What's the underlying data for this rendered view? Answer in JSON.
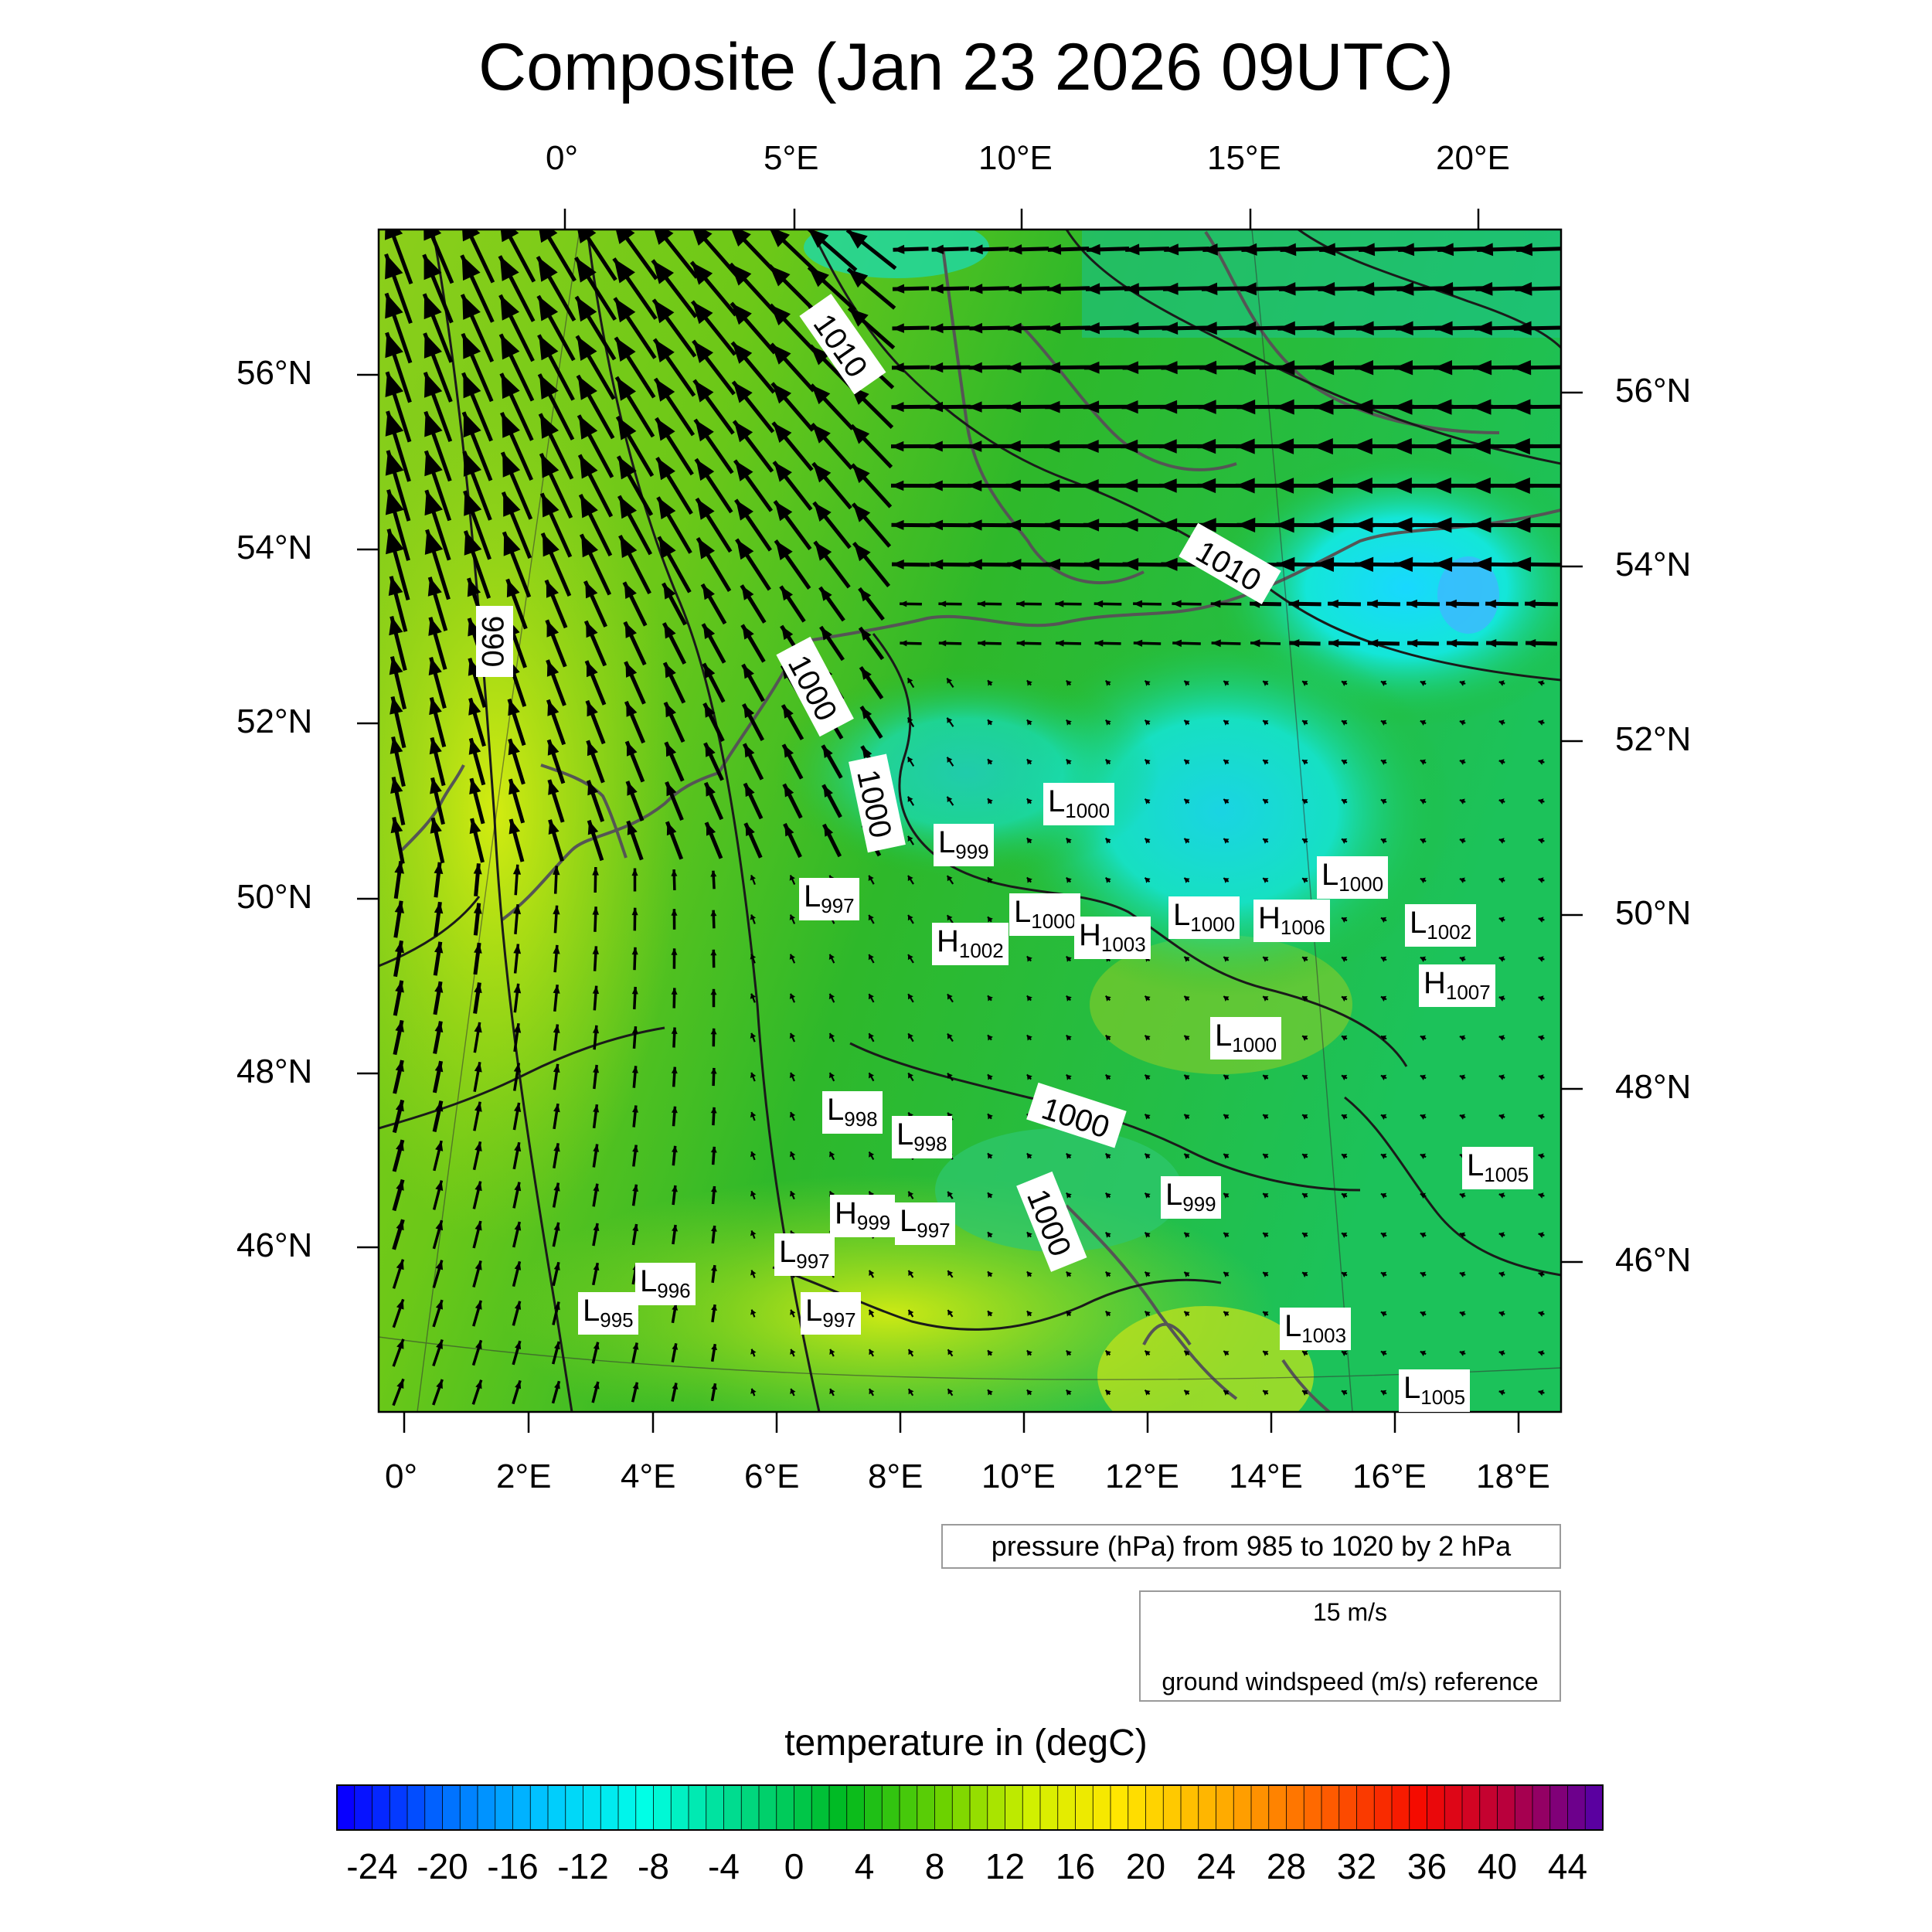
{
  "title": "Composite (Jan 23 2026 09UTC)",
  "colors": {
    "land_mid": "#22bb22",
    "land_warm": "#a8d81a",
    "cold": "#14e0e0",
    "coast": "#555555",
    "isobar": "#1a1a1a",
    "arrow": "#000000"
  },
  "axes": {
    "top_lon_labels": [
      "0°",
      "5°E",
      "10°E",
      "15°E",
      "20°E"
    ],
    "bottom_lon_labels": [
      "0°",
      "2°E",
      "4°E",
      "6°E",
      "8°E",
      "10°E",
      "12°E",
      "14°E",
      "16°E",
      "18°E"
    ],
    "left_lat_labels": [
      "56°N",
      "54°N",
      "52°N",
      "50°N",
      "48°N",
      "46°N"
    ],
    "right_lat_labels": [
      "56°N",
      "54°N",
      "52°N",
      "50°N",
      "48°N",
      "46°N"
    ]
  },
  "pressure_legend": "pressure (hPa) from 985 to 1020 by 2 hPa",
  "wind_reference": {
    "speed_label": "15 m/s",
    "description": "ground windspeed (m/s) reference"
  },
  "colorbar": {
    "title": "temperature in (degC)",
    "min": -26,
    "max": 46,
    "step": 1,
    "labels": [
      "-24",
      "-20",
      "-16",
      "-12",
      "-8",
      "-4",
      "0",
      "4",
      "8",
      "12",
      "16",
      "20",
      "24",
      "28",
      "32",
      "36",
      "40",
      "44"
    ]
  },
  "isobar_labels": [
    "1010",
    "1010",
    "990",
    "1000",
    "1000",
    "1000",
    "1000"
  ],
  "pressure_centers": [
    {
      "type": "L",
      "value": "1000"
    },
    {
      "type": "L",
      "value": "999"
    },
    {
      "type": "L",
      "value": "997"
    },
    {
      "type": "L",
      "value": "1000"
    },
    {
      "type": "H",
      "value": "1002"
    },
    {
      "type": "H",
      "value": "1003"
    },
    {
      "type": "L",
      "value": "1000"
    },
    {
      "type": "H",
      "value": "1006"
    },
    {
      "type": "L",
      "value": "1000"
    },
    {
      "type": "L",
      "value": "1002"
    },
    {
      "type": "H",
      "value": "1007"
    },
    {
      "type": "L",
      "value": "1000"
    },
    {
      "type": "L",
      "value": "998"
    },
    {
      "type": "L",
      "value": "998"
    },
    {
      "type": "L",
      "value": "999"
    },
    {
      "type": "L",
      "value": "1005"
    },
    {
      "type": "H",
      "value": "999"
    },
    {
      "type": "L",
      "value": "997"
    },
    {
      "type": "L",
      "value": "997"
    },
    {
      "type": "L",
      "value": "996"
    },
    {
      "type": "L",
      "value": "995"
    },
    {
      "type": "L",
      "value": "997"
    },
    {
      "type": "L",
      "value": "1003"
    },
    {
      "type": "L",
      "value": "1005"
    }
  ]
}
